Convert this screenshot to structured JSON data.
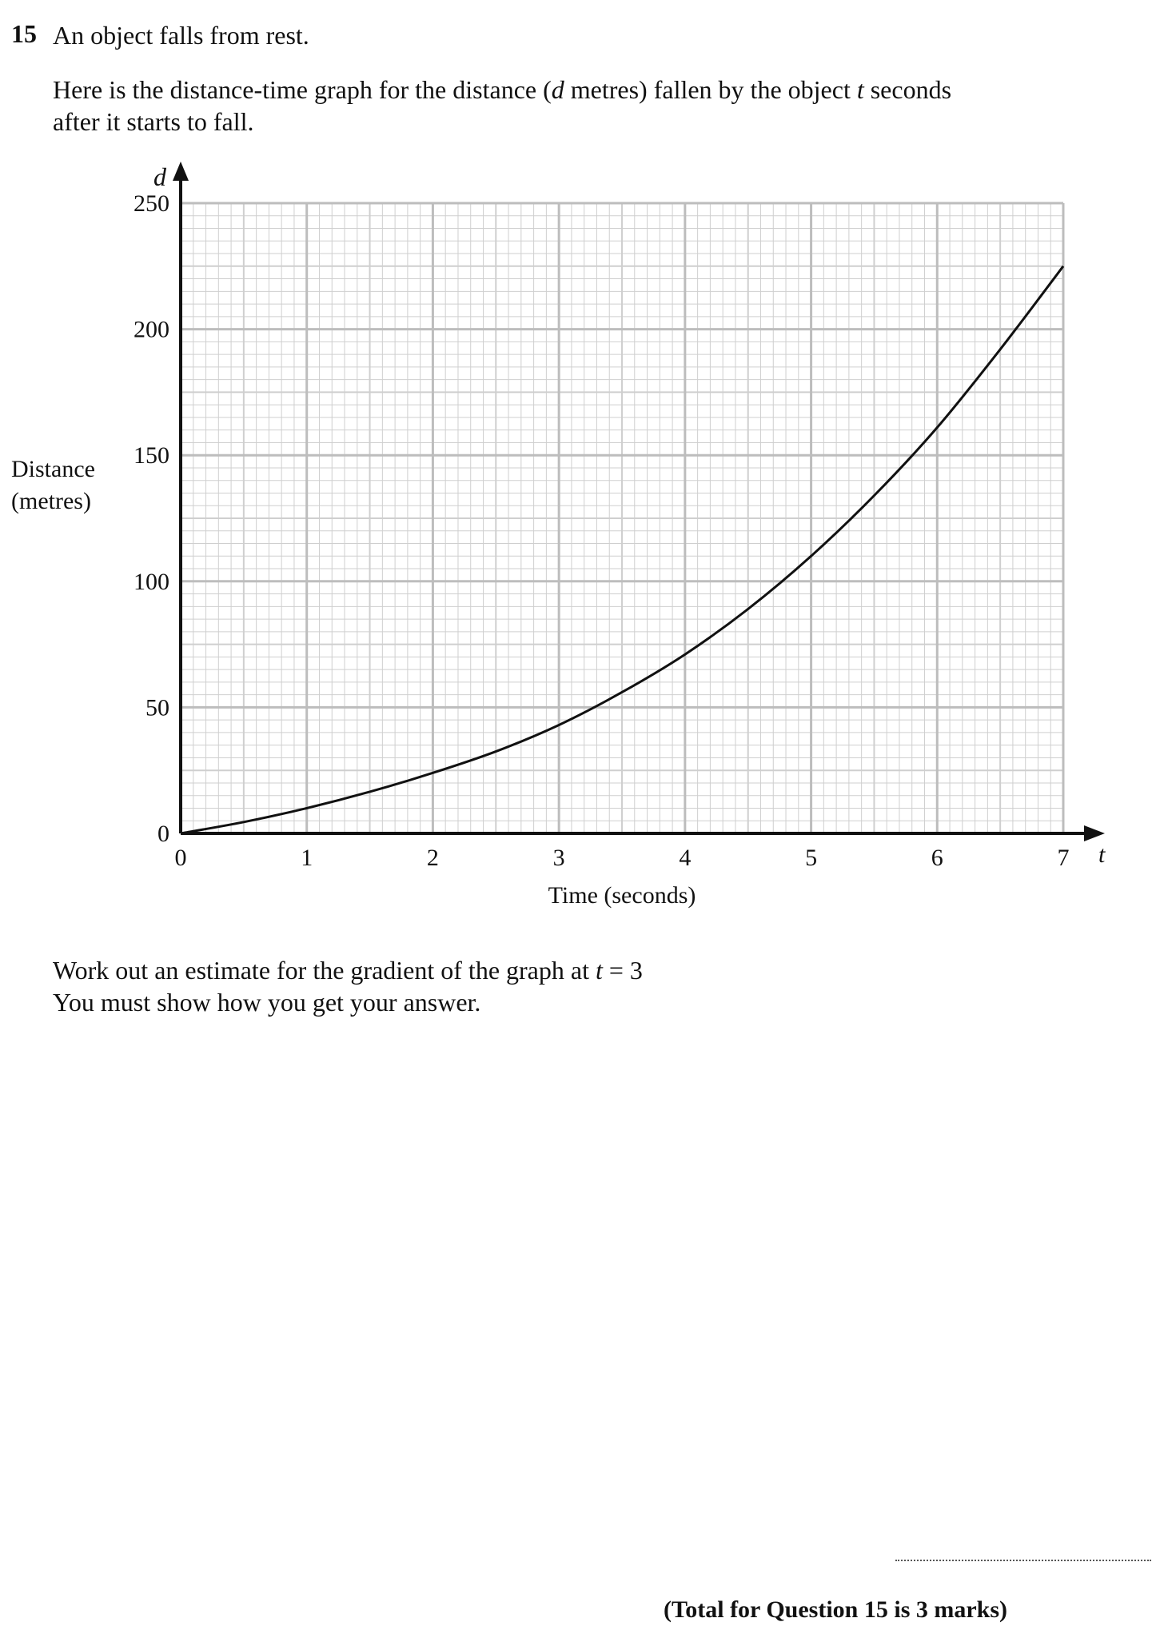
{
  "question": {
    "number": "15",
    "intro": "An object falls from rest.",
    "desc_line1_a": "Here is the distance-time graph for the distance (",
    "desc_line1_var_d": "d",
    "desc_line1_b": " metres) fallen by the object ",
    "desc_line1_var_t": "t",
    "desc_line1_c": " seconds",
    "desc_line2": "after it starts to fall.",
    "task_line1_a": "Work out an estimate for the gradient of the graph at ",
    "task_line1_var_t": "t",
    "task_line1_b": " = 3",
    "task_line2": "You must show how you get your answer.",
    "total": "(Total for Question 15 is 3 marks)"
  },
  "chart_data": {
    "type": "line",
    "xlabel": "Time (seconds)",
    "ylabel_line1": "Distance",
    "ylabel_line2": "(metres)",
    "x_axis_symbol": "t",
    "y_axis_symbol": "d",
    "xlim": [
      0,
      7
    ],
    "ylim": [
      0,
      250
    ],
    "x_ticks": [
      "0",
      "1",
      "2",
      "3",
      "4",
      "5",
      "6",
      "7"
    ],
    "y_ticks": [
      "0",
      "50",
      "100",
      "150",
      "200",
      "250"
    ],
    "grid": true,
    "series": [
      {
        "x": [
          0,
          0.5,
          1,
          1.5,
          2,
          2.5,
          3,
          3.5,
          4,
          4.5,
          5,
          5.5,
          6,
          6.5,
          7
        ],
        "y": [
          0,
          4.5,
          10,
          16.5,
          24,
          32.5,
          43,
          56,
          71,
          89,
          110,
          134,
          161,
          192,
          225
        ]
      }
    ]
  }
}
